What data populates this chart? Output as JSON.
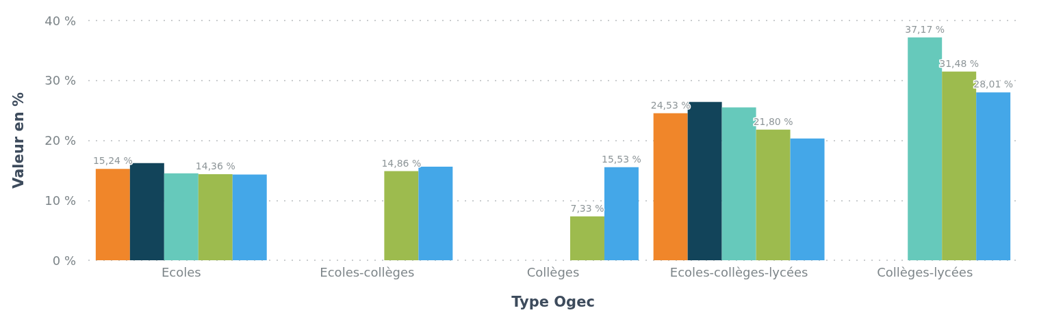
{
  "chart_data": {
    "type": "bar",
    "xlabel": "Type Ogec",
    "ylabel": "Valeur en %",
    "categories": [
      "Ecoles",
      "Ecoles-collèges",
      "Collèges",
      "Ecoles-collèges-lycées",
      "Collèges-lycées"
    ],
    "series": [
      {
        "color": "#f0862a",
        "values": [
          15.24,
          null,
          null,
          24.53,
          null
        ],
        "value_labels": [
          "15,24 %",
          null,
          null,
          "24,53 %",
          null
        ]
      },
      {
        "color": "#12445a",
        "values": [
          16.2,
          null,
          null,
          26.4,
          null
        ]
      },
      {
        "color": "#66c9bb",
        "values": [
          14.5,
          null,
          null,
          25.5,
          37.17
        ],
        "value_labels": [
          null,
          null,
          null,
          null,
          "37,17 %"
        ]
      },
      {
        "color": "#9dbb4e",
        "values": [
          14.36,
          14.86,
          7.33,
          21.8,
          31.48
        ],
        "value_labels": [
          "14,36 %",
          "14,86 %",
          "7,33 %",
          "21,80 %",
          "31,48 %"
        ]
      },
      {
        "color": "#44a7e8",
        "values": [
          14.3,
          15.6,
          15.53,
          20.3,
          28.01
        ],
        "value_labels": [
          null,
          null,
          "15,53 %",
          null,
          "28,01 %"
        ]
      }
    ],
    "ylim": [
      0,
      40
    ],
    "yticks": [
      {
        "value": 0,
        "label": "0 %"
      },
      {
        "value": 10,
        "label": "10 %"
      },
      {
        "value": 20,
        "label": "20 %"
      },
      {
        "value": 30,
        "label": "30 %"
      },
      {
        "value": 40,
        "label": "40 %"
      }
    ],
    "grid": "y"
  }
}
